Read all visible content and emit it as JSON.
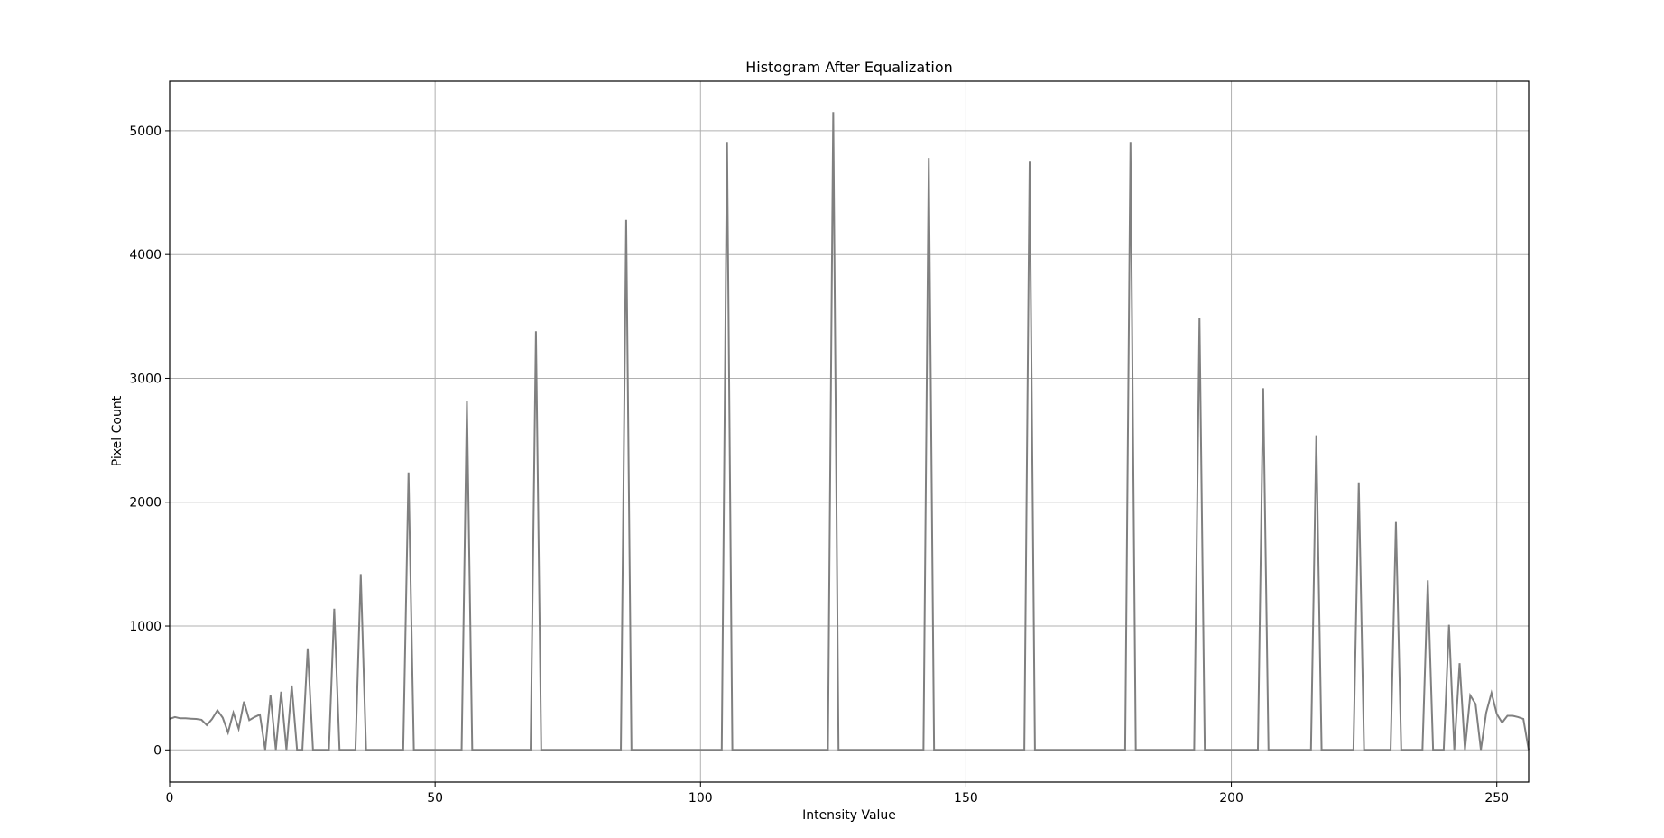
{
  "chart_data": {
    "type": "line",
    "title": "Histogram After Equalization",
    "xlabel": "Intensity Value",
    "ylabel": "Pixel Count",
    "xlim": [
      0,
      256
    ],
    "ylim": [
      -260,
      5400
    ],
    "xticks": [
      0,
      50,
      100,
      150,
      200,
      250
    ],
    "yticks": [
      0,
      1000,
      2000,
      3000,
      4000,
      5000
    ],
    "grid": true,
    "line_color": "#808080",
    "series": [
      {
        "points": [
          [
            0,
            250
          ],
          [
            1,
            265
          ],
          [
            2,
            255
          ],
          [
            3,
            255
          ],
          [
            4,
            252
          ],
          [
            5,
            250
          ],
          [
            6,
            243
          ],
          [
            7,
            200
          ],
          [
            8,
            250
          ],
          [
            9,
            320
          ],
          [
            10,
            260
          ],
          [
            11,
            140
          ],
          [
            12,
            300
          ],
          [
            13,
            170
          ],
          [
            14,
            390
          ],
          [
            15,
            240
          ],
          [
            16,
            265
          ],
          [
            17,
            285
          ],
          [
            18,
            0
          ],
          [
            19,
            440
          ],
          [
            20,
            0
          ],
          [
            21,
            470
          ],
          [
            22,
            0
          ],
          [
            23,
            520
          ],
          [
            24,
            0
          ],
          [
            25,
            0
          ],
          [
            26,
            820
          ],
          [
            27,
            0
          ],
          [
            28,
            0
          ],
          [
            29,
            0
          ],
          [
            30,
            0
          ],
          [
            31,
            1140
          ],
          [
            32,
            0
          ],
          [
            33,
            0
          ],
          [
            34,
            0
          ],
          [
            35,
            0
          ],
          [
            36,
            1420
          ],
          [
            37,
            0
          ],
          [
            38,
            0
          ],
          [
            39,
            0
          ],
          [
            40,
            0
          ],
          [
            41,
            0
          ],
          [
            42,
            0
          ],
          [
            43,
            0
          ],
          [
            44,
            0
          ],
          [
            45,
            2240
          ],
          [
            46,
            0
          ],
          [
            47,
            0
          ],
          [
            48,
            0
          ],
          [
            49,
            0
          ],
          [
            50,
            0
          ],
          [
            51,
            0
          ],
          [
            52,
            0
          ],
          [
            53,
            0
          ],
          [
            54,
            0
          ],
          [
            55,
            0
          ],
          [
            56,
            2820
          ],
          [
            57,
            0
          ],
          [
            58,
            0
          ],
          [
            59,
            0
          ],
          [
            60,
            0
          ],
          [
            61,
            0
          ],
          [
            62,
            0
          ],
          [
            63,
            0
          ],
          [
            64,
            0
          ],
          [
            65,
            0
          ],
          [
            66,
            0
          ],
          [
            67,
            0
          ],
          [
            68,
            0
          ],
          [
            69,
            3380
          ],
          [
            70,
            0
          ],
          [
            71,
            0
          ],
          [
            72,
            0
          ],
          [
            73,
            0
          ],
          [
            74,
            0
          ],
          [
            75,
            0
          ],
          [
            76,
            0
          ],
          [
            77,
            0
          ],
          [
            78,
            0
          ],
          [
            79,
            0
          ],
          [
            80,
            0
          ],
          [
            81,
            0
          ],
          [
            82,
            0
          ],
          [
            83,
            0
          ],
          [
            84,
            0
          ],
          [
            85,
            0
          ],
          [
            86,
            4280
          ],
          [
            87,
            0
          ],
          [
            88,
            0
          ],
          [
            89,
            0
          ],
          [
            90,
            0
          ],
          [
            91,
            0
          ],
          [
            92,
            0
          ],
          [
            93,
            0
          ],
          [
            94,
            0
          ],
          [
            95,
            0
          ],
          [
            96,
            0
          ],
          [
            97,
            0
          ],
          [
            98,
            0
          ],
          [
            99,
            0
          ],
          [
            100,
            0
          ],
          [
            101,
            0
          ],
          [
            102,
            0
          ],
          [
            103,
            0
          ],
          [
            104,
            0
          ],
          [
            105,
            4910
          ],
          [
            106,
            0
          ],
          [
            107,
            0
          ],
          [
            108,
            0
          ],
          [
            109,
            0
          ],
          [
            110,
            0
          ],
          [
            111,
            0
          ],
          [
            112,
            0
          ],
          [
            113,
            0
          ],
          [
            114,
            0
          ],
          [
            115,
            0
          ],
          [
            116,
            0
          ],
          [
            117,
            0
          ],
          [
            118,
            0
          ],
          [
            119,
            0
          ],
          [
            120,
            0
          ],
          [
            121,
            0
          ],
          [
            122,
            0
          ],
          [
            123,
            0
          ],
          [
            124,
            0
          ],
          [
            125,
            5150
          ],
          [
            126,
            0
          ],
          [
            127,
            0
          ],
          [
            128,
            0
          ],
          [
            129,
            0
          ],
          [
            130,
            0
          ],
          [
            131,
            0
          ],
          [
            132,
            0
          ],
          [
            133,
            0
          ],
          [
            134,
            0
          ],
          [
            135,
            0
          ],
          [
            136,
            0
          ],
          [
            137,
            0
          ],
          [
            138,
            0
          ],
          [
            139,
            0
          ],
          [
            140,
            0
          ],
          [
            141,
            0
          ],
          [
            142,
            0
          ],
          [
            143,
            4780
          ],
          [
            144,
            0
          ],
          [
            145,
            0
          ],
          [
            146,
            0
          ],
          [
            147,
            0
          ],
          [
            148,
            0
          ],
          [
            149,
            0
          ],
          [
            150,
            0
          ],
          [
            151,
            0
          ],
          [
            152,
            0
          ],
          [
            153,
            0
          ],
          [
            154,
            0
          ],
          [
            155,
            0
          ],
          [
            156,
            0
          ],
          [
            157,
            0
          ],
          [
            158,
            0
          ],
          [
            159,
            0
          ],
          [
            160,
            0
          ],
          [
            161,
            0
          ],
          [
            162,
            4750
          ],
          [
            163,
            0
          ],
          [
            164,
            0
          ],
          [
            165,
            0
          ],
          [
            166,
            0
          ],
          [
            167,
            0
          ],
          [
            168,
            0
          ],
          [
            169,
            0
          ],
          [
            170,
            0
          ],
          [
            171,
            0
          ],
          [
            172,
            0
          ],
          [
            173,
            0
          ],
          [
            174,
            0
          ],
          [
            175,
            0
          ],
          [
            176,
            0
          ],
          [
            177,
            0
          ],
          [
            178,
            0
          ],
          [
            179,
            0
          ],
          [
            180,
            0
          ],
          [
            181,
            4910
          ],
          [
            182,
            0
          ],
          [
            183,
            0
          ],
          [
            184,
            0
          ],
          [
            185,
            0
          ],
          [
            186,
            0
          ],
          [
            187,
            0
          ],
          [
            188,
            0
          ],
          [
            189,
            0
          ],
          [
            190,
            0
          ],
          [
            191,
            0
          ],
          [
            192,
            0
          ],
          [
            193,
            0
          ],
          [
            194,
            3490
          ],
          [
            195,
            0
          ],
          [
            196,
            0
          ],
          [
            197,
            0
          ],
          [
            198,
            0
          ],
          [
            199,
            0
          ],
          [
            200,
            0
          ],
          [
            201,
            0
          ],
          [
            202,
            0
          ],
          [
            203,
            0
          ],
          [
            204,
            0
          ],
          [
            205,
            0
          ],
          [
            206,
            2920
          ],
          [
            207,
            0
          ],
          [
            208,
            0
          ],
          [
            209,
            0
          ],
          [
            210,
            0
          ],
          [
            211,
            0
          ],
          [
            212,
            0
          ],
          [
            213,
            0
          ],
          [
            214,
            0
          ],
          [
            215,
            0
          ],
          [
            216,
            2540
          ],
          [
            217,
            0
          ],
          [
            218,
            0
          ],
          [
            219,
            0
          ],
          [
            220,
            0
          ],
          [
            221,
            0
          ],
          [
            222,
            0
          ],
          [
            223,
            0
          ],
          [
            224,
            2160
          ],
          [
            225,
            0
          ],
          [
            226,
            0
          ],
          [
            227,
            0
          ],
          [
            228,
            0
          ],
          [
            229,
            0
          ],
          [
            230,
            0
          ],
          [
            231,
            1840
          ],
          [
            232,
            0
          ],
          [
            233,
            0
          ],
          [
            234,
            0
          ],
          [
            235,
            0
          ],
          [
            236,
            0
          ],
          [
            237,
            1370
          ],
          [
            238,
            0
          ],
          [
            239,
            0
          ],
          [
            240,
            0
          ],
          [
            241,
            1010
          ],
          [
            242,
            0
          ],
          [
            243,
            700
          ],
          [
            244,
            0
          ],
          [
            245,
            440
          ],
          [
            246,
            370
          ],
          [
            247,
            0
          ],
          [
            248,
            300
          ],
          [
            249,
            460
          ],
          [
            250,
            290
          ],
          [
            251,
            220
          ],
          [
            252,
            275
          ],
          [
            253,
            275
          ],
          [
            254,
            265
          ],
          [
            255,
            250
          ],
          [
            256,
            0
          ]
        ]
      }
    ]
  }
}
